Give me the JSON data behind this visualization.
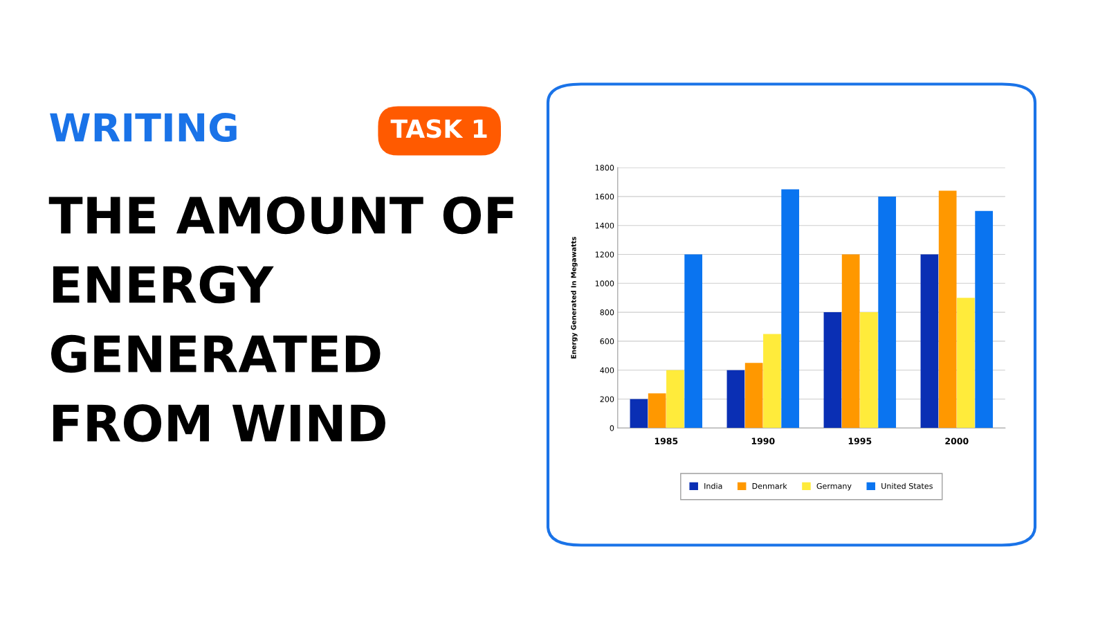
{
  "chart_data": {
    "type": "bar",
    "title": "THE AMOUNT OF\nENERGY\nGENERATED\nFROM WIND",
    "annotations": [
      "WRITING",
      "TASK 1"
    ],
    "ylabel": "Energy Generated In Megawatts",
    "categories": [
      "1985",
      "1990",
      "1995",
      "2000"
    ],
    "series": [
      {
        "name": "India",
        "color": "#0a2fb4",
        "values": [
          200,
          400,
          800,
          1200
        ]
      },
      {
        "name": "Denmark",
        "color": "#ff9800",
        "values": [
          240,
          450,
          1200,
          1640
        ]
      },
      {
        "name": "Germany",
        "color": "#ffeb3b",
        "values": [
          400,
          650,
          800,
          900
        ]
      },
      {
        "name": "United States",
        "color": "#0a74f0",
        "values": [
          1200,
          1650,
          1600,
          1500
        ]
      }
    ],
    "ylim": [
      0,
      1800
    ],
    "yticks": [
      0,
      200,
      400,
      600,
      800,
      1000,
      1200,
      1400,
      1600,
      1800
    ],
    "grid": "y",
    "legend": "bottom"
  }
}
